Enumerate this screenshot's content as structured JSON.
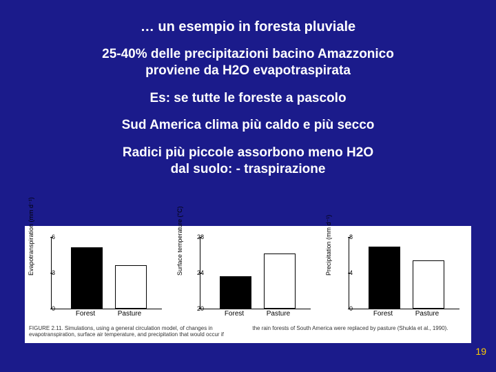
{
  "title": "… un esempio in foresta pluviale",
  "lines": {
    "l1a": "25-40% delle precipitazioni bacino Amazzonico",
    "l1b": "proviene da H2O evapotraspirata",
    "l2": "Es: se tutte le foreste a pascolo",
    "l3": "Sud America clima più caldo e più secco",
    "l4a": "Radici più piccole assorbono meno H2O",
    "l4b": "dal suolo: - traspirazione"
  },
  "figure": {
    "background_color": "#ffffff",
    "panels": [
      {
        "type": "bar",
        "ylabel": "Evapotranspiration (mm d⁻¹)",
        "ymin": 0,
        "ymax": 6,
        "yticks": [
          0,
          3,
          6
        ],
        "categories": [
          "Forest",
          "Pasture"
        ],
        "values": [
          5.0,
          3.5
        ],
        "bar_colors": [
          "#000000",
          "#ffffff"
        ],
        "bar_borders": [
          "#000000",
          "#000000"
        ]
      },
      {
        "type": "bar",
        "ylabel": "Surface temperature (°C)",
        "ymin": 20,
        "ymax": 28,
        "yticks": [
          20,
          24,
          28
        ],
        "categories": [
          "Forest",
          "Pasture"
        ],
        "values": [
          23.5,
          26.0
        ],
        "bar_colors": [
          "#000000",
          "#ffffff"
        ],
        "bar_borders": [
          "#000000",
          "#000000"
        ]
      },
      {
        "type": "bar",
        "ylabel": "Precipitation (mm d⁻¹)",
        "ymin": 0,
        "ymax": 8,
        "yticks": [
          0,
          4,
          8
        ],
        "categories": [
          "Forest",
          "Pasture"
        ],
        "values": [
          6.8,
          5.2
        ],
        "bar_colors": [
          "#000000",
          "#ffffff"
        ],
        "bar_borders": [
          "#000000",
          "#000000"
        ]
      }
    ],
    "caption_left": "FIGURE 2.11. Simulations, using a general circulation model, of changes in evapotranspiration, surface air temperature, and precipitation that would occur if",
    "caption_right": "the rain forests of South America were replaced by pasture (Shukla et al., 1990)."
  },
  "page_number": "19"
}
